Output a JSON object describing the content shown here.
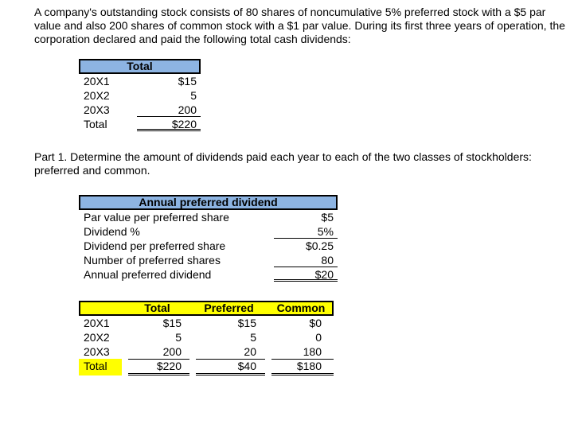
{
  "intro": "A company's outstanding stock consists of 80 shares of noncumulative 5% preferred stock with a $5 par value and also 200 shares of common stock with a $1 par value. During its first three years of operation, the corporation declared and paid the following total cash dividends:",
  "part1": "Part 1.  Determine the amount of dividends paid each year to each of the two classes of stockholders: preferred and common.",
  "colors": {
    "header_blue": "#8DB4E2",
    "highlight_yellow": "#FFFF00"
  },
  "dividends_table": {
    "header": "Total",
    "rows": [
      {
        "label": "20X1",
        "value": "$15"
      },
      {
        "label": "20X2",
        "value": "5"
      },
      {
        "label": "20X3",
        "value": "200"
      },
      {
        "label": "Total",
        "value": "$220"
      }
    ]
  },
  "preferred_table": {
    "header": "Annual preferred dividend",
    "rows": [
      {
        "label": "Par value per preferred share",
        "value": "$5"
      },
      {
        "label": "Dividend %",
        "value": "5%"
      },
      {
        "label": "Dividend per preferred share",
        "value": "$0.25"
      },
      {
        "label": "Number of preferred shares",
        "value": "80"
      },
      {
        "label": "Annual preferred dividend",
        "value": "$20"
      }
    ]
  },
  "allocation_table": {
    "headers": {
      "total": "Total",
      "preferred": "Preferred",
      "common": "Common"
    },
    "rows": [
      {
        "label": "20X1",
        "total": "$15",
        "preferred": "$15",
        "common": "$0"
      },
      {
        "label": "20X2",
        "total": "5",
        "preferred": "5",
        "common": "0"
      },
      {
        "label": "20X3",
        "total": "200",
        "preferred": "20",
        "common": "180"
      },
      {
        "label": "Total",
        "total": "$220",
        "preferred": "$40",
        "common": "$180"
      }
    ]
  }
}
